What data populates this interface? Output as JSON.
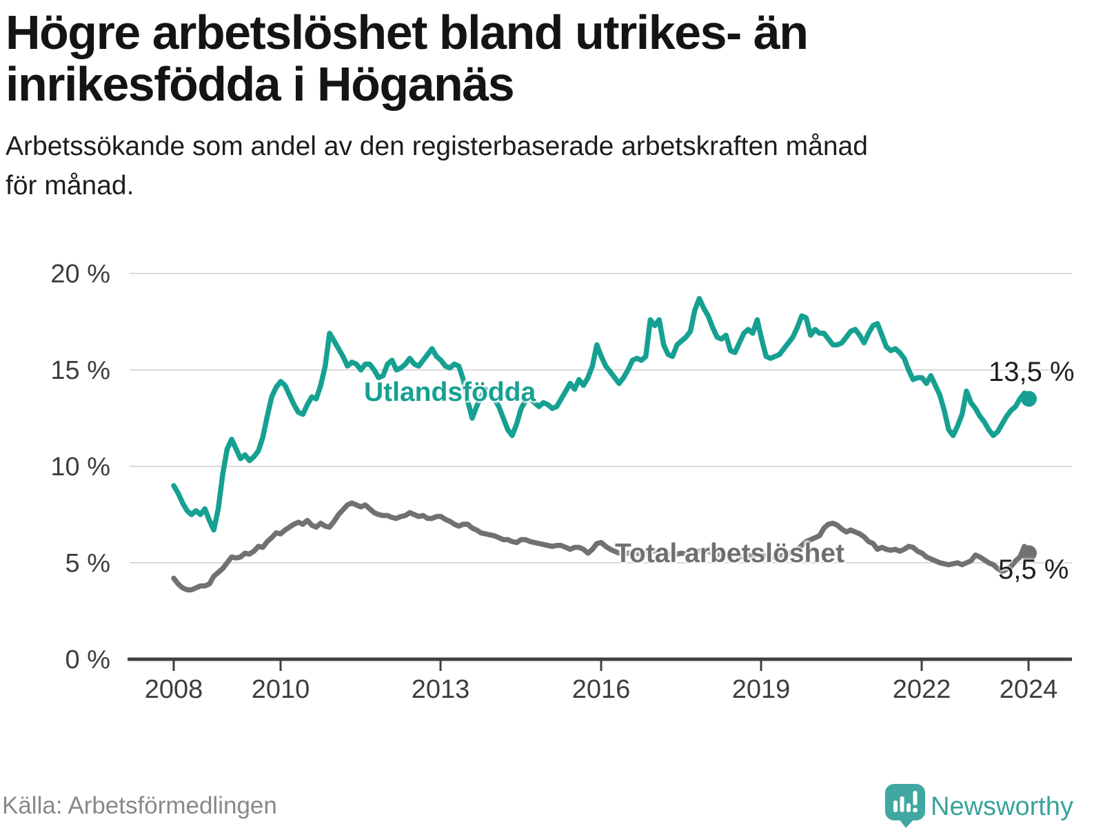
{
  "header": {
    "title_line1": "Högre arbetslöshet bland utrikes- än",
    "title_line2": "inrikesfödda i Höganäs",
    "subtitle_line1": "Arbetssökande som andel av den registerbaserade arbetskraften månad",
    "subtitle_line2": "för månad."
  },
  "footer": {
    "source": "Källa: Arbetsförmedlingen",
    "brand": "Newsworthy",
    "logo_icon": "bar-chart-speech-bubble"
  },
  "colors": {
    "foreign_born_line": "#16a092",
    "total_line": "#717171",
    "series_label_total": "#6f6f6f",
    "value_label": "#1f1f1f",
    "axis_text": "#3d3d3d",
    "gridline": "#dadada",
    "axis_line": "#3f3f3f",
    "brand_teal": "#38a39b",
    "logo_icon_teal": "#41a8a1"
  },
  "chart_data": {
    "type": "line",
    "title": "Högre arbetslöshet bland utrikes- än inrikesfödda i Höganäs",
    "subtitle": "Arbetssökande som andel av den registerbaserade arbetskraften månad för månad.",
    "x_unit": "month",
    "x_start": "2008-01",
    "x_end": "2024-01",
    "ylim": [
      0,
      21.5
    ],
    "grid": true,
    "legend_position": "inline-labels",
    "y_ticks": [
      "20 %",
      "15 %",
      "10 %",
      "5 %",
      "0 %"
    ],
    "x_ticks": [
      "2008",
      "2010",
      "2013",
      "2016",
      "2019",
      "2022",
      "2024"
    ],
    "series": [
      {
        "key": "utlandsfodda",
        "name": "Utlandsfödda",
        "label": "Utlandsfödda",
        "end_label": "13,5 %",
        "end_value": 13.5,
        "color": "#16a092",
        "values": [
          9,
          8.6,
          8.1,
          7.7,
          7.5,
          7.7,
          7.5,
          7.8,
          7.2,
          6.7,
          7.8,
          9.6,
          10.9,
          11.4,
          10.9,
          10.4,
          10.6,
          10.3,
          10.5,
          10.8,
          11.5,
          12.6,
          13.6,
          14.1,
          14.4,
          14.2,
          13.7,
          13.2,
          12.8,
          12.7,
          13.2,
          13.6,
          13.5,
          14.2,
          15.2,
          16.9,
          16.5,
          16.1,
          15.7,
          15.2,
          15.4,
          15.3,
          15,
          15.3,
          15.3,
          15,
          14.6,
          14.7,
          15.3,
          15.5,
          15,
          15.1,
          15.3,
          15.6,
          15.3,
          15.2,
          15.5,
          15.8,
          16.1,
          15.7,
          15.5,
          15.2,
          15.1,
          15.3,
          15.2,
          14.5,
          13.4,
          12.5,
          13.1,
          13.6,
          14,
          13.7,
          13.5,
          13.1,
          12.5,
          11.9,
          11.6,
          12.2,
          13,
          13.4,
          13.5,
          13.3,
          13.1,
          13.3,
          13.2,
          13,
          13.1,
          13.5,
          13.9,
          14.3,
          14,
          14.5,
          14.2,
          14.6,
          15.2,
          16.3,
          15.7,
          15.2,
          14.9,
          14.6,
          14.3,
          14.6,
          15,
          15.5,
          15.6,
          15.5,
          15.7,
          17.6,
          17.3,
          17.6,
          16.3,
          15.8,
          15.7,
          16.3,
          16.5,
          16.7,
          17,
          18.1,
          18.7,
          18.2,
          17.8,
          17.2,
          16.7,
          16.6,
          16.8,
          16,
          15.9,
          16.4,
          16.9,
          17.1,
          16.9,
          17.6,
          16.6,
          15.7,
          15.6,
          15.7,
          15.8,
          16.1,
          16.4,
          16.7,
          17.2,
          17.8,
          17.7,
          16.8,
          17.1,
          16.9,
          16.9,
          16.6,
          16.3,
          16.3,
          16.4,
          16.7,
          17,
          17.1,
          16.8,
          16.4,
          16.9,
          17.3,
          17.4,
          16.8,
          16.2,
          16,
          16.1,
          15.9,
          15.6,
          15,
          14.5,
          14.6,
          14.6,
          14.3,
          14.7,
          14.2,
          13.7,
          12.9,
          11.9,
          11.6,
          12.1,
          12.7,
          13.9,
          13.3,
          13,
          12.6,
          12.3,
          11.9,
          11.6,
          11.8,
          12.2,
          12.6,
          12.9,
          13.1,
          13.5,
          13.8,
          13.5
        ]
      },
      {
        "key": "total",
        "name": "Total arbetslöshet",
        "label": "Total arbetslöshet",
        "end_label": "5,5 %",
        "end_value": 5.5,
        "color": "#717171",
        "values": [
          4.2,
          3.9,
          3.7,
          3.6,
          3.6,
          3.7,
          3.8,
          3.8,
          3.9,
          4.3,
          4.5,
          4.7,
          5,
          5.3,
          5.25,
          5.3,
          5.5,
          5.45,
          5.6,
          5.85,
          5.8,
          6.1,
          6.3,
          6.55,
          6.5,
          6.7,
          6.85,
          7,
          7.1,
          7,
          7.2,
          6.95,
          6.85,
          7.05,
          6.9,
          6.85,
          7.15,
          7.5,
          7.75,
          8,
          8.1,
          8,
          7.9,
          8,
          7.8,
          7.6,
          7.5,
          7.45,
          7.45,
          7.35,
          7.3,
          7.4,
          7.45,
          7.6,
          7.5,
          7.4,
          7.45,
          7.3,
          7.3,
          7.4,
          7.4,
          7.25,
          7.15,
          7,
          6.9,
          7,
          7,
          6.8,
          6.7,
          6.55,
          6.5,
          6.45,
          6.4,
          6.3,
          6.2,
          6.2,
          6.1,
          6.05,
          6.2,
          6.2,
          6.1,
          6.05,
          6,
          5.95,
          5.9,
          5.85,
          5.9,
          5.9,
          5.8,
          5.7,
          5.8,
          5.8,
          5.7,
          5.5,
          5.7,
          6,
          6.05,
          5.85,
          5.7,
          5.6,
          5.5,
          5.45,
          5.5,
          5.55,
          5.5,
          5.45,
          5.5,
          5.6,
          5.6,
          5.55,
          5.5,
          5.45,
          5.4,
          5.45,
          5.5,
          5.45,
          5.5,
          5.55,
          5.6,
          5.6,
          5.6,
          5.5,
          5.45,
          5.4,
          5.35,
          5.3,
          5.35,
          5.3,
          5.35,
          5.4,
          5.35,
          5.4,
          5.4,
          5.35,
          5.3,
          5.3,
          5.35,
          5.4,
          5.5,
          5.55,
          5.7,
          5.9,
          6.1,
          6.2,
          6.3,
          6.4,
          6.8,
          7,
          7.05,
          6.95,
          6.75,
          6.6,
          6.7,
          6.6,
          6.5,
          6.35,
          6.1,
          6,
          5.7,
          5.8,
          5.7,
          5.65,
          5.7,
          5.6,
          5.7,
          5.85,
          5.8,
          5.6,
          5.5,
          5.3,
          5.2,
          5.1,
          5,
          4.95,
          4.9,
          4.95,
          5,
          4.9,
          5,
          5.1,
          5.4,
          5.3,
          5.15,
          5,
          4.9,
          4.7,
          4.55,
          4.65,
          4.8,
          5.1,
          5.3,
          5.85,
          5.5
        ]
      }
    ]
  }
}
